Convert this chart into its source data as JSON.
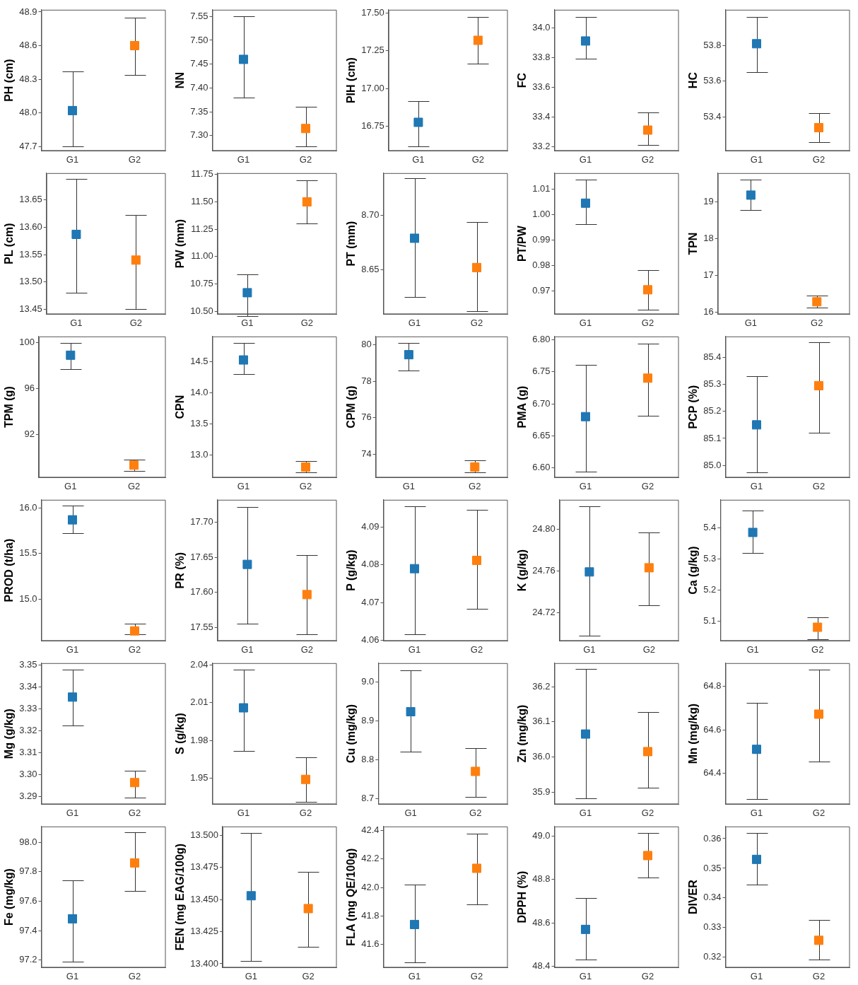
{
  "chart_data": [
    {
      "type": "scatter",
      "marker": "square",
      "ylabel": "PH (cm)",
      "categories": [
        "G1",
        "G2"
      ],
      "values": [
        48.02,
        48.6
      ],
      "errors": [
        [
          47.7,
          48.37
        ],
        [
          48.34,
          48.85
        ]
      ],
      "colors": [
        "#1f77b4",
        "#ff7f0e"
      ],
      "ylim": [
        47.66,
        48.92
      ],
      "yticks": [
        47.7,
        {
          "value": 48,
          "label": "48.0"
        },
        48.3,
        48.6,
        48.9
      ]
    },
    {
      "type": "scatter",
      "marker": "square",
      "ylabel": "NN",
      "categories": [
        "G1",
        "G2"
      ],
      "values": [
        7.46,
        7.315
      ],
      "errors": [
        [
          7.38,
          7.55
        ],
        [
          7.278,
          7.36
        ]
      ],
      "colors": [
        "#1f77b4",
        "#ff7f0e"
      ],
      "ylim": [
        7.268,
        7.564
      ],
      "yticks": [
        {
          "value": 7.3,
          "label": "7.30"
        },
        7.35,
        {
          "value": 7.4,
          "label": "7.40"
        },
        7.45,
        {
          "value": 7.5,
          "label": "7.50"
        },
        7.55
      ]
    },
    {
      "type": "scatter",
      "marker": "square",
      "ylabel": "PIH (cm)",
      "categories": [
        "G1",
        "G2"
      ],
      "values": [
        16.775,
        17.32
      ],
      "errors": [
        [
          16.615,
          16.915
        ],
        [
          17.165,
          17.475
        ]
      ],
      "colors": [
        "#1f77b4",
        "#ff7f0e"
      ],
      "ylim": [
        16.585,
        17.523
      ],
      "yticks": [
        16.75,
        {
          "value": 17,
          "label": "17.00"
        },
        17.25,
        {
          "value": 17.5,
          "label": "17.50"
        }
      ]
    },
    {
      "type": "scatter",
      "marker": "square",
      "ylabel": "FC",
      "categories": [
        "G1",
        "G2"
      ],
      "values": [
        33.91,
        33.31
      ],
      "errors": [
        [
          33.79,
          34.07
        ],
        [
          33.21,
          33.43
        ]
      ],
      "colors": [
        "#1f77b4",
        "#ff7f0e"
      ],
      "ylim": [
        33.17,
        34.12
      ],
      "yticks": [
        33.2,
        33.4,
        33.6,
        33.8,
        {
          "value": 34,
          "label": "34.0"
        }
      ]
    },
    {
      "type": "scatter",
      "marker": "square",
      "ylabel": "HC",
      "categories": [
        "G1",
        "G2"
      ],
      "values": [
        53.81,
        53.34
      ],
      "errors": [
        [
          53.65,
          53.96
        ],
        [
          53.26,
          53.42
        ]
      ],
      "colors": [
        "#1f77b4",
        "#ff7f0e"
      ],
      "ylim": [
        53.21,
        54.0
      ],
      "yticks": [
        53.4,
        53.6,
        53.8
      ]
    },
    {
      "type": "scatter",
      "marker": "square",
      "ylabel": "PL (cm)",
      "categories": [
        "G1",
        "G2"
      ],
      "values": [
        13.587,
        13.54
      ],
      "errors": [
        [
          13.48,
          13.688
        ],
        [
          13.45,
          13.622
        ]
      ],
      "colors": [
        "#1f77b4",
        "#ff7f0e"
      ],
      "ylim": [
        13.441,
        13.699
      ],
      "yticks": [
        13.45,
        {
          "value": 13.5,
          "label": "13.50"
        },
        13.55,
        {
          "value": 13.6,
          "label": "13.60"
        },
        13.65
      ]
    },
    {
      "type": "scatter",
      "marker": "square",
      "ylabel": "PW (mm)",
      "categories": [
        "G1",
        "G2"
      ],
      "values": [
        10.67,
        11.5
      ],
      "errors": [
        [
          10.455,
          10.84
        ],
        [
          11.3,
          11.695
        ]
      ],
      "colors": [
        "#1f77b4",
        "#ff7f0e"
      ],
      "ylim": [
        10.473,
        11.763
      ],
      "yticks": [
        {
          "value": 10.5,
          "label": "10.50"
        },
        10.75,
        {
          "value": 11,
          "label": "11.00"
        },
        11.25,
        {
          "value": 11.5,
          "label": "11.50"
        },
        11.75
      ]
    },
    {
      "type": "scatter",
      "marker": "square",
      "ylabel": "PT (mm)",
      "categories": [
        "G1",
        "G2"
      ],
      "values": [
        8.679,
        8.652
      ],
      "errors": [
        [
          8.625,
          8.734
        ],
        [
          8.612,
          8.694
        ]
      ],
      "colors": [
        "#1f77b4",
        "#ff7f0e"
      ],
      "ylim": [
        8.609,
        8.739
      ],
      "yticks": [
        8.65,
        {
          "value": 8.7,
          "label": "8.70"
        }
      ]
    },
    {
      "type": "scatter",
      "marker": "square",
      "ylabel": "PT/PW",
      "categories": [
        "G1",
        "G2"
      ],
      "values": [
        1.0045,
        0.9705
      ],
      "errors": [
        [
          0.9963,
          1.0138
        ],
        [
          0.9628,
          0.9783
        ]
      ],
      "colors": [
        "#1f77b4",
        "#ff7f0e"
      ],
      "ylim": [
        0.9609,
        1.0163
      ],
      "yticks": [
        0.97,
        0.98,
        0.99,
        {
          "value": 1,
          "label": "1.00"
        },
        1.01
      ]
    },
    {
      "type": "scatter",
      "marker": "square",
      "ylabel": "TPN",
      "categories": [
        "G1",
        "G2"
      ],
      "values": [
        19.19,
        16.28
      ],
      "errors": [
        [
          18.78,
          19.61
        ],
        [
          16.13,
          16.44
        ]
      ],
      "colors": [
        "#1f77b4",
        "#ff7f0e"
      ],
      "ylim": [
        15.94,
        19.79
      ],
      "yticks": [
        16,
        17,
        18,
        19
      ]
    },
    {
      "type": "scatter",
      "marker": "square",
      "ylabel": "TPM (g)",
      "categories": [
        "G1",
        "G2"
      ],
      "values": [
        98.9,
        89.3
      ],
      "errors": [
        [
          97.7,
          100.0
        ],
        [
          88.8,
          89.8
        ]
      ],
      "colors": [
        "#1f77b4",
        "#ff7f0e"
      ],
      "ylim": [
        88.21,
        100.54
      ],
      "yticks": [
        92,
        96,
        100
      ]
    },
    {
      "type": "scatter",
      "marker": "square",
      "ylabel": "CPN",
      "categories": [
        "G1",
        "G2"
      ],
      "values": [
        14.53,
        12.8
      ],
      "errors": [
        [
          14.3,
          14.8
        ],
        [
          12.71,
          12.9
        ]
      ],
      "colors": [
        "#1f77b4",
        "#ff7f0e"
      ],
      "ylim": [
        12.63,
        14.91
      ],
      "yticks": [
        {
          "value": 13,
          "label": "13.0"
        },
        13.5,
        {
          "value": 14,
          "label": "14.0"
        },
        14.5
      ]
    },
    {
      "type": "scatter",
      "marker": "square",
      "ylabel": "CPM (g)",
      "categories": [
        "G1",
        "G2"
      ],
      "values": [
        79.45,
        73.3
      ],
      "errors": [
        [
          78.6,
          80.1
        ],
        [
          73.0,
          73.65
        ]
      ],
      "colors": [
        "#1f77b4",
        "#ff7f0e"
      ],
      "ylim": [
        72.72,
        80.45
      ],
      "yticks": [
        74,
        76,
        78,
        80
      ]
    },
    {
      "type": "scatter",
      "marker": "square",
      "ylabel": "PMA (g)",
      "categories": [
        "G1",
        "G2"
      ],
      "values": [
        6.68,
        6.74
      ],
      "errors": [
        [
          6.594,
          6.761
        ],
        [
          6.681,
          6.794
        ]
      ],
      "colors": [
        "#1f77b4",
        "#ff7f0e"
      ],
      "ylim": [
        6.585,
        6.805
      ],
      "yticks": [
        {
          "value": 6.6,
          "label": "6.60"
        },
        6.65,
        {
          "value": 6.7,
          "label": "6.70"
        },
        6.75,
        {
          "value": 6.8,
          "label": "6.80"
        }
      ]
    },
    {
      "type": "scatter",
      "marker": "square",
      "ylabel": "PCP (%)",
      "categories": [
        "G1",
        "G2"
      ],
      "values": [
        85.15,
        85.295
      ],
      "errors": [
        [
          84.975,
          85.33
        ],
        [
          85.12,
          85.455
        ]
      ],
      "colors": [
        "#1f77b4",
        "#ff7f0e"
      ],
      "ylim": [
        84.955,
        85.477
      ],
      "yticks": [
        {
          "value": 85,
          "label": "85.0"
        },
        85.1,
        85.2,
        85.3,
        85.4
      ]
    },
    {
      "type": "scatter",
      "marker": "square",
      "ylabel": "PROD (t/ha)",
      "categories": [
        "G1",
        "G2"
      ],
      "values": [
        15.87,
        14.65
      ],
      "errors": [
        [
          15.72,
          16.03
        ],
        [
          14.61,
          14.73
        ]
      ],
      "colors": [
        "#1f77b4",
        "#ff7f0e"
      ],
      "ylim": [
        14.54,
        16.09
      ],
      "yticks": [
        {
          "value": 15,
          "label": "15.0"
        },
        15.5,
        {
          "value": 16,
          "label": "16.0"
        }
      ]
    },
    {
      "type": "scatter",
      "marker": "square",
      "ylabel": "PR (%)",
      "categories": [
        "G1",
        "G2"
      ],
      "values": [
        17.64,
        17.597
      ],
      "errors": [
        [
          17.556,
          17.722
        ],
        [
          17.54,
          17.653
        ]
      ],
      "colors": [
        "#1f77b4",
        "#ff7f0e"
      ],
      "ylim": [
        17.531,
        17.732
      ],
      "yticks": [
        17.55,
        {
          "value": 17.6,
          "label": "17.60"
        },
        17.65,
        {
          "value": 17.7,
          "label": "17.70"
        }
      ]
    },
    {
      "type": "scatter",
      "marker": "square",
      "ylabel": "P (g/kg)",
      "categories": [
        "G1",
        "G2"
      ],
      "values": [
        4.079,
        4.0812
      ],
      "errors": [
        [
          4.0615,
          4.0955
        ],
        [
          4.0683,
          4.0947
        ]
      ],
      "colors": [
        "#1f77b4",
        "#ff7f0e"
      ],
      "ylim": [
        4.0598,
        4.0973
      ],
      "yticks": [
        4.06,
        4.07,
        4.08,
        4.09
      ]
    },
    {
      "type": "scatter",
      "marker": "square",
      "ylabel": "K (g/kg)",
      "categories": [
        "G1",
        "G2"
      ],
      "values": [
        24.759,
        24.763
      ],
      "errors": [
        [
          24.698,
          24.822
        ],
        [
          24.727,
          24.797
        ]
      ],
      "colors": [
        "#1f77b4",
        "#ff7f0e"
      ],
      "ylim": [
        24.693,
        24.828
      ],
      "yticks": [
        24.72,
        24.76,
        {
          "value": 24.8,
          "label": "24.80"
        }
      ]
    },
    {
      "type": "scatter",
      "marker": "square",
      "ylabel": "Ca (g/kg)",
      "categories": [
        "G1",
        "G2"
      ],
      "values": [
        5.385,
        5.08
      ],
      "errors": [
        [
          5.32,
          5.455
        ],
        [
          5.042,
          5.113
        ]
      ],
      "colors": [
        "#1f77b4",
        "#ff7f0e"
      ],
      "ylim": [
        5.036,
        5.49
      ],
      "yticks": [
        5.1,
        5.2,
        5.3,
        5.4
      ]
    },
    {
      "type": "scatter",
      "marker": "square",
      "ylabel": "Mg (g/kg)",
      "categories": [
        "G1",
        "G2"
      ],
      "values": [
        3.3355,
        3.2965
      ],
      "errors": [
        [
          3.3225,
          3.348
        ],
        [
          3.2895,
          3.302
        ]
      ],
      "colors": [
        "#1f77b4",
        "#ff7f0e"
      ],
      "ylim": [
        3.2866,
        3.351
      ],
      "yticks": [
        3.29,
        {
          "value": 3.3,
          "label": "3.30"
        },
        3.31,
        3.32,
        3.33,
        3.34,
        3.35
      ]
    },
    {
      "type": "scatter",
      "marker": "square",
      "ylabel": "S (g/kg)",
      "categories": [
        "G1",
        "G2"
      ],
      "values": [
        2.006,
        1.949
      ],
      "errors": [
        [
          1.9715,
          2.0365
        ],
        [
          1.931,
          1.9665
        ]
      ],
      "colors": [
        "#1f77b4",
        "#ff7f0e"
      ],
      "ylim": [
        1.9292,
        2.0416
      ],
      "yticks": [
        1.95,
        1.98,
        2.01,
        2.04
      ]
    },
    {
      "type": "scatter",
      "marker": "square",
      "ylabel": "Cu (mg/kg)",
      "categories": [
        "G1",
        "G2"
      ],
      "values": [
        8.923,
        8.77
      ],
      "errors": [
        [
          8.82,
          9.03
        ],
        [
          8.705,
          8.83
        ]
      ],
      "colors": [
        "#1f77b4",
        "#ff7f0e"
      ],
      "ylim": [
        8.6857,
        9.0476
      ],
      "yticks": [
        8.7,
        8.8,
        8.9,
        {
          "value": 9,
          "label": "9.0"
        }
      ]
    },
    {
      "type": "scatter",
      "marker": "square",
      "ylabel": "Zn (mg/kg)",
      "categories": [
        "G1",
        "G2"
      ],
      "values": [
        36.065,
        36.015
      ],
      "errors": [
        [
          35.882,
          36.25
        ],
        [
          35.912,
          36.127
        ]
      ],
      "colors": [
        "#1f77b4",
        "#ff7f0e"
      ],
      "ylim": [
        35.865,
        36.267
      ],
      "yticks": [
        35.9,
        {
          "value": 36,
          "label": "36.0"
        },
        36.1,
        36.2
      ]
    },
    {
      "type": "scatter",
      "marker": "square",
      "ylabel": "Mn (mg/kg)",
      "categories": [
        "G1",
        "G2"
      ],
      "values": [
        64.51,
        64.672
      ],
      "errors": [
        [
          64.28,
          64.723
        ],
        [
          64.455,
          64.878
        ]
      ],
      "colors": [
        "#1f77b4",
        "#ff7f0e"
      ],
      "ylim": [
        64.257,
        64.907
      ],
      "yticks": [
        64.4,
        64.6,
        64.8
      ]
    },
    {
      "type": "scatter",
      "marker": "square",
      "ylabel": "Fe (mg/kg)",
      "categories": [
        "G1",
        "G2"
      ],
      "values": [
        97.48,
        97.86
      ],
      "errors": [
        [
          97.19,
          97.74
        ],
        [
          97.67,
          98.07
        ]
      ],
      "colors": [
        "#1f77b4",
        "#ff7f0e"
      ],
      "ylim": [
        97.148,
        98.108
      ],
      "yticks": [
        97.2,
        97.4,
        97.6,
        97.8,
        {
          "value": 98,
          "label": "98.0"
        }
      ]
    },
    {
      "type": "scatter",
      "marker": "square",
      "ylabel": "FEN (mg EAG/100g)",
      "categories": [
        "G1",
        "G2"
      ],
      "values": [
        13.453,
        13.443
      ],
      "errors": [
        [
          13.402,
          13.502
        ],
        [
          13.413,
          13.4715
        ]
      ],
      "colors": [
        "#1f77b4",
        "#ff7f0e"
      ],
      "ylim": [
        13.397,
        13.507
      ],
      "yticks": [
        {
          "value": 13.4,
          "label": "13.400"
        },
        13.425,
        {
          "value": 13.45,
          "label": "13.450"
        },
        13.475,
        {
          "value": 13.5,
          "label": "13.500"
        }
      ]
    },
    {
      "type": "scatter",
      "marker": "square",
      "ylabel": "FLA (mg QE/100g)",
      "categories": [
        "G1",
        "G2"
      ],
      "values": [
        41.74,
        42.135
      ],
      "errors": [
        [
          41.475,
          42.02
        ],
        [
          41.88,
          42.38
        ]
      ],
      "colors": [
        "#1f77b4",
        "#ff7f0e"
      ],
      "ylim": [
        41.437,
        42.429
      ],
      "yticks": [
        41.6,
        41.8,
        {
          "value": 42,
          "label": "42.0"
        },
        42.2,
        42.4
      ]
    },
    {
      "type": "scatter",
      "marker": "square",
      "ylabel": "DPPH (%)",
      "categories": [
        "G1",
        "G2"
      ],
      "values": [
        48.57,
        48.91
      ],
      "errors": [
        [
          48.43,
          48.715
        ],
        [
          48.81,
          49.015
        ]
      ],
      "colors": [
        "#1f77b4",
        "#ff7f0e"
      ],
      "ylim": [
        48.394,
        49.044
      ],
      "yticks": [
        48.4,
        48.6,
        48.8,
        {
          "value": 49,
          "label": "49.0"
        }
      ]
    },
    {
      "type": "scatter",
      "marker": "square",
      "ylabel": "DIVER",
      "categories": [
        "G1",
        "G2"
      ],
      "values": [
        0.353,
        0.3257
      ],
      "errors": [
        [
          0.3445,
          0.362
        ],
        [
          0.3192,
          0.3325
        ]
      ],
      "colors": [
        "#1f77b4",
        "#ff7f0e"
      ],
      "ylim": [
        0.3165,
        0.3641
      ],
      "yticks": [
        0.32,
        0.33,
        0.34,
        0.35,
        0.36
      ]
    }
  ]
}
